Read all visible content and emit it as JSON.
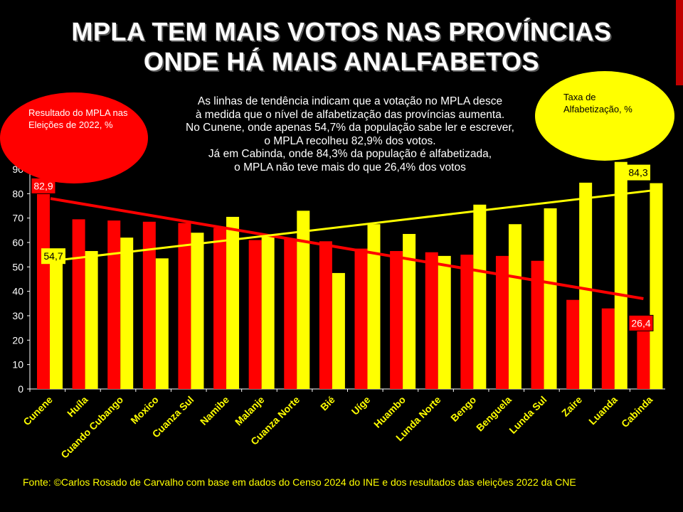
{
  "title_line1": "MPLA TEM MAIS VOTOS NAS PROVÍNCIAS",
  "title_line2": "ONDE HÁ MAIS ANALFABETOS",
  "note_lines": [
    "As linhas de tendência indicam que a votação no MPLA desce",
    "à medida que o nível de alfabetização das províncias aumenta.",
    "No Cunene, onde apenas 54,7% da população sabe ler e escrever,",
    "o MPLA recolheu  82,9% dos votos.",
    "Já em Cabinda, onde 84,3% da população é alfabetizada,",
    "o MPLA não teve mais do que 26,4% dos votos"
  ],
  "red_bubble_text": "Resultado do MPLA nas Eleições de 2022, %",
  "yellow_bubble_text": "Taxa de Alfabetização, %",
  "source": "Fonte: ©Carlos Rosado de Carvalho com base em dados do Censo 2024 do INE e dos resultados das eleições 2022 da CNE",
  "colors": {
    "mpla": "#ff0000",
    "literacy": "#ffff00",
    "background": "#000000",
    "category_label": "#ffff00"
  },
  "chart_data": {
    "type": "bar",
    "categories": [
      "Cunene",
      "Huíla",
      "Cuando Cubango",
      "Moxico",
      "Cuanza Sul",
      "Namibe",
      "Malanje",
      "Cuanza Norte",
      "Bié",
      "Uíge",
      "Huambo",
      "Lunda Norte",
      "Bengo",
      "Benguela",
      "Lunda Sul",
      "Zaire",
      "Luanda",
      "Cabinda"
    ],
    "series": [
      {
        "name": "Resultado do MPLA nas Eleições de 2022, %",
        "color": "#ff0000",
        "values": [
          82.9,
          69.5,
          69,
          68.5,
          68,
          66,
          61,
          61.5,
          60.5,
          57.5,
          56.5,
          56,
          55,
          54.5,
          52.5,
          36.5,
          33,
          26.4
        ]
      },
      {
        "name": "Taxa de Alfabetização, %",
        "color": "#ffff00",
        "values": [
          54.7,
          56.5,
          62,
          53.5,
          64,
          70.5,
          62.5,
          73,
          47.5,
          67.5,
          63.5,
          54.5,
          75.5,
          67.5,
          74,
          84.5,
          94,
          84.3
        ]
      }
    ],
    "trendlines": [
      {
        "series": "Resultado do MPLA nas Eleições de 2022, %",
        "start": 78,
        "end": 37
      },
      {
        "series": "Taxa de Alfabetização, %",
        "start": 53,
        "end": 81.5
      }
    ],
    "data_labels": [
      {
        "series": 0,
        "index": 0,
        "text": "82,9"
      },
      {
        "series": 1,
        "index": 0,
        "text": "54,7"
      },
      {
        "series": 0,
        "index": 17,
        "text": "26,4"
      },
      {
        "series": 1,
        "index": 17,
        "text": "84,3"
      }
    ],
    "ylim": [
      0,
      90
    ],
    "yticks": [
      0,
      10,
      20,
      30,
      40,
      50,
      60,
      70,
      80,
      90
    ],
    "grid": false,
    "xlabel": "",
    "ylabel": ""
  }
}
